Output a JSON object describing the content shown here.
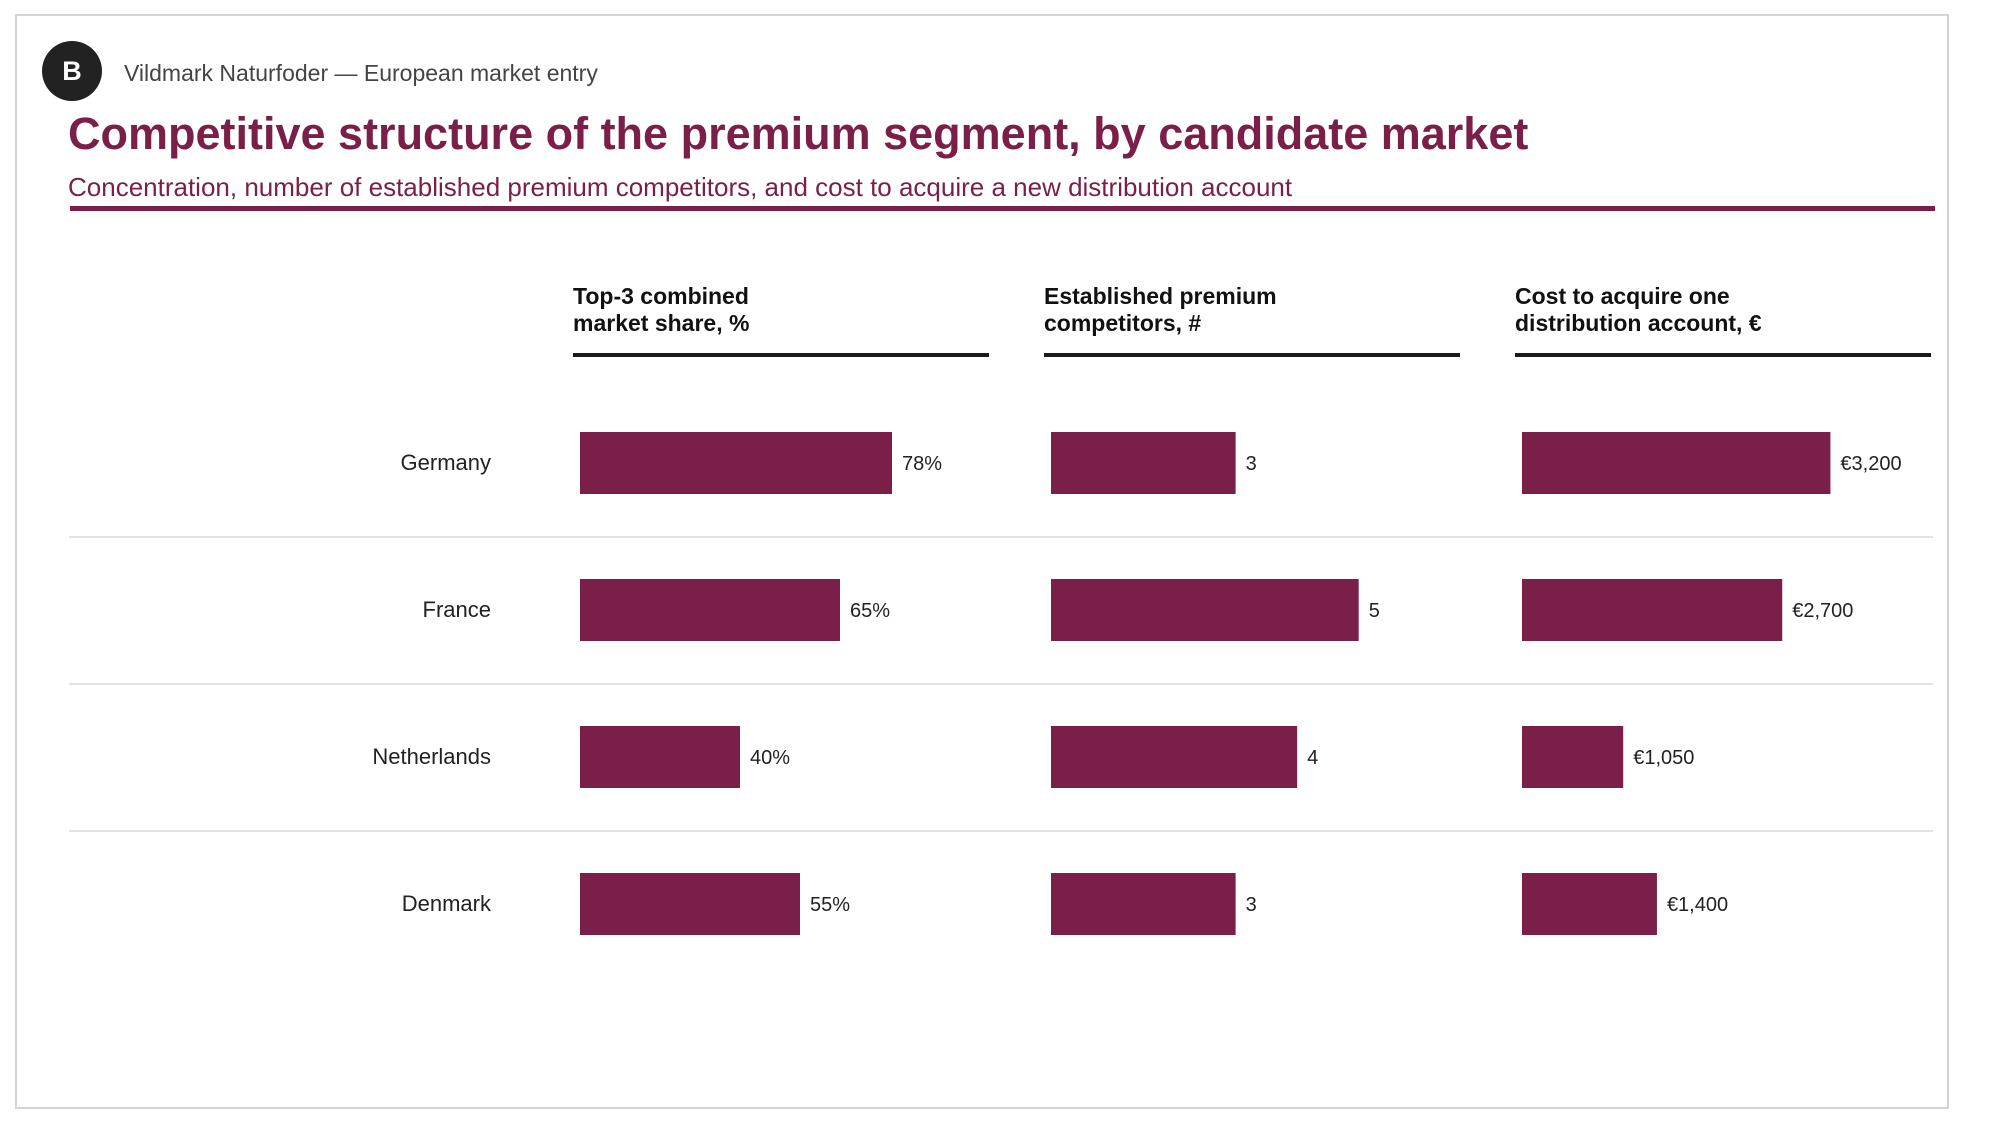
{
  "header": {
    "badge": "B",
    "kicker": "Vildmark Naturfoder — European market entry",
    "title": "Competitive structure of the premium segment, by candidate market",
    "subtitle": "Concentration, number of established premium competitors, and cost to acquire a new distribution account"
  },
  "colors": {
    "accent": "#7a1f48",
    "bar": "#7a1f48",
    "divider": "#e3e3e3",
    "axis": "#1a1a1a"
  },
  "chart_data": {
    "type": "bar",
    "orientation": "horizontal",
    "categories": [
      "Germany",
      "France",
      "Netherlands",
      "Denmark"
    ],
    "panels": [
      {
        "title_lines": [
          "Top-3 combined",
          "market share, %"
        ],
        "values": [
          78,
          65,
          40,
          55
        ],
        "labels": [
          "78%",
          "65%",
          "40%",
          "55%"
        ],
        "xlim": [
          0,
          100
        ]
      },
      {
        "title_lines": [
          "Established premium",
          "competitors, #"
        ],
        "values": [
          3,
          5,
          4,
          3
        ],
        "labels": [
          "3",
          "5",
          "4",
          "3"
        ],
        "xlim": [
          0,
          6.5
        ]
      },
      {
        "title_lines": [
          "Cost to acquire one",
          "distribution account, €"
        ],
        "values": [
          3200,
          2700,
          1050,
          1400
        ],
        "labels": [
          "€3,200",
          "€2,700",
          "€1,050",
          "€1,400"
        ],
        "xlim": [
          0,
          4150
        ]
      }
    ]
  }
}
